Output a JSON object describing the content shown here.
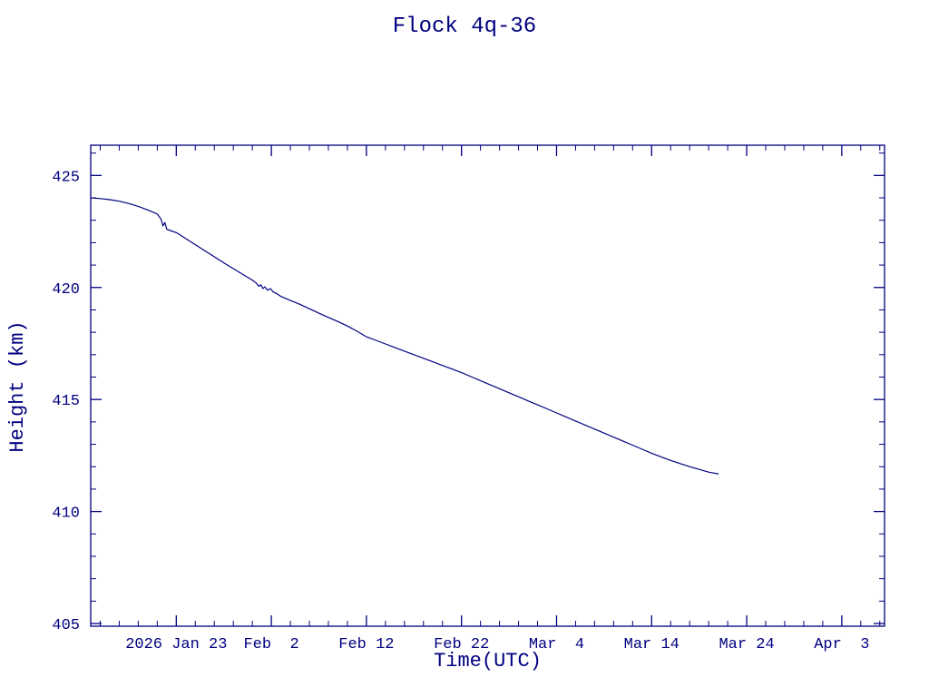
{
  "chart_data": {
    "type": "line",
    "title": "Flock 4q-36",
    "xlabel": "Time(UTC)",
    "ylabel": "Height (km)",
    "axis_color": "#000080",
    "line_color": "#000080",
    "background": "#ffffff",
    "x_unit": "days since 2026 Jan 14",
    "xlim": [
      0,
      83.5
    ],
    "ylim": [
      404.88,
      426.35
    ],
    "x_ticks": [
      {
        "x": 9,
        "label": "2026 Jan 23"
      },
      {
        "x": 19,
        "label": "Feb  2"
      },
      {
        "x": 29,
        "label": "Feb 12"
      },
      {
        "x": 39,
        "label": "Feb 22"
      },
      {
        "x": 49,
        "label": "Mar  4"
      },
      {
        "x": 59,
        "label": "Mar 14"
      },
      {
        "x": 69,
        "label": "Mar 24"
      },
      {
        "x": 79,
        "label": "Apr  3"
      }
    ],
    "x_minor_start": 1,
    "x_minor_step": 2,
    "y_ticks": [
      405,
      410,
      415,
      420,
      425
    ],
    "y_minor_step": 1,
    "legend": "none",
    "grid": false,
    "points": [
      [
        0,
        424.0
      ],
      [
        1,
        423.97
      ],
      [
        2,
        423.92
      ],
      [
        3,
        423.85
      ],
      [
        4,
        423.75
      ],
      [
        5,
        423.62
      ],
      [
        6,
        423.46
      ],
      [
        7,
        423.28
      ],
      [
        7.4,
        423.05
      ],
      [
        7.6,
        422.75
      ],
      [
        7.8,
        422.9
      ],
      [
        8,
        422.6
      ],
      [
        8.5,
        422.52
      ],
      [
        9,
        422.45
      ],
      [
        10,
        422.18
      ],
      [
        11,
        421.91
      ],
      [
        12,
        421.64
      ],
      [
        13,
        421.37
      ],
      [
        14,
        421.1
      ],
      [
        15,
        420.84
      ],
      [
        16,
        420.58
      ],
      [
        17,
        420.33
      ],
      [
        17.4,
        420.2
      ],
      [
        17.7,
        420.05
      ],
      [
        17.9,
        420.12
      ],
      [
        18.1,
        419.95
      ],
      [
        18.3,
        420.03
      ],
      [
        18.6,
        419.88
      ],
      [
        18.9,
        419.95
      ],
      [
        19.2,
        419.8
      ],
      [
        19.6,
        419.72
      ],
      [
        20,
        419.6
      ],
      [
        21,
        419.42
      ],
      [
        22,
        419.25
      ],
      [
        23,
        419.05
      ],
      [
        24,
        418.85
      ],
      [
        25,
        418.66
      ],
      [
        26,
        418.48
      ],
      [
        27,
        418.28
      ],
      [
        28,
        418.05
      ],
      [
        29,
        417.8
      ],
      [
        30,
        417.64
      ],
      [
        31,
        417.48
      ],
      [
        32,
        417.32
      ],
      [
        33,
        417.16
      ],
      [
        34,
        417.0
      ],
      [
        35,
        416.84
      ],
      [
        36,
        416.68
      ],
      [
        37,
        416.52
      ],
      [
        38,
        416.36
      ],
      [
        39,
        416.2
      ],
      [
        40,
        416.02
      ],
      [
        41,
        415.84
      ],
      [
        42,
        415.66
      ],
      [
        43,
        415.48
      ],
      [
        44,
        415.3
      ],
      [
        45,
        415.12
      ],
      [
        46,
        414.94
      ],
      [
        47,
        414.76
      ],
      [
        48,
        414.58
      ],
      [
        49,
        414.4
      ],
      [
        50,
        414.22
      ],
      [
        51,
        414.04
      ],
      [
        52,
        413.86
      ],
      [
        53,
        413.68
      ],
      [
        54,
        413.5
      ],
      [
        55,
        413.32
      ],
      [
        56,
        413.14
      ],
      [
        57,
        412.96
      ],
      [
        58,
        412.78
      ],
      [
        59,
        412.6
      ],
      [
        60,
        412.44
      ],
      [
        61,
        412.28
      ],
      [
        62,
        412.14
      ],
      [
        63,
        412.0
      ],
      [
        64,
        411.88
      ],
      [
        64.5,
        411.82
      ],
      [
        65,
        411.76
      ],
      [
        65.5,
        411.72
      ],
      [
        66,
        411.68
      ]
    ]
  }
}
